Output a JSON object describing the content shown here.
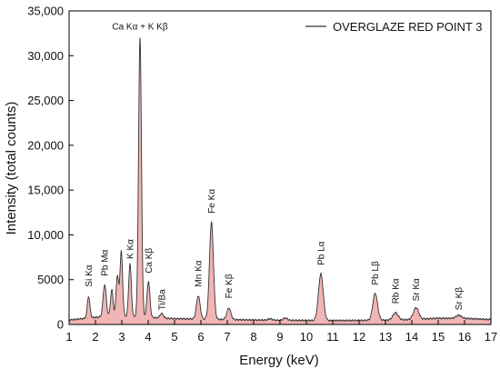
{
  "chart_data": {
    "type": "area",
    "xlabel": "Energy (keV)",
    "ylabel": "Intensity (total counts)",
    "xlim": [
      1,
      17
    ],
    "ylim": [
      0,
      35000
    ],
    "x_ticks": [
      "1",
      "2",
      "3",
      "4",
      "5",
      "6",
      "7",
      "8",
      "9",
      "10",
      "11",
      "12",
      "13",
      "14",
      "15",
      "16",
      "17"
    ],
    "y_ticks": [
      {
        "value": 0,
        "label": "0"
      },
      {
        "value": 5000,
        "label": "5000"
      },
      {
        "value": 10000,
        "label": "10,000"
      },
      {
        "value": 15000,
        "label": "15,000"
      },
      {
        "value": 20000,
        "label": "20,000"
      },
      {
        "value": 25000,
        "label": "25,000"
      },
      {
        "value": 30000,
        "label": "30,000"
      },
      {
        "value": 35000,
        "label": "35,000"
      }
    ],
    "legend": "top-right",
    "grid": false,
    "line_color": "#333333",
    "fill_color": "#f2b5b5",
    "series": [
      {
        "name": "OVERGLAZE RED POINT 3",
        "background": [
          [
            1.0,
            500
          ],
          [
            1.5,
            650
          ],
          [
            2.0,
            800
          ],
          [
            3.0,
            900
          ],
          [
            4.0,
            800
          ],
          [
            5.0,
            650
          ],
          [
            6.0,
            600
          ],
          [
            7.0,
            550
          ],
          [
            8.0,
            500
          ],
          [
            9.0,
            470
          ],
          [
            10.0,
            450
          ],
          [
            11.0,
            440
          ],
          [
            12.0,
            450
          ],
          [
            13.0,
            480
          ],
          [
            14.0,
            550
          ],
          [
            15.0,
            700
          ],
          [
            16.0,
            680
          ],
          [
            17.0,
            550
          ]
        ],
        "peaks": [
          {
            "energy": 1.74,
            "height": 2400,
            "width": 0.05
          },
          {
            "energy": 2.35,
            "height": 3600,
            "width": 0.06
          },
          {
            "energy": 2.62,
            "height": 3000,
            "width": 0.05
          },
          {
            "energy": 2.83,
            "height": 4500,
            "width": 0.05
          },
          {
            "energy": 2.98,
            "height": 7200,
            "width": 0.05
          },
          {
            "energy": 3.31,
            "height": 5900,
            "width": 0.05
          },
          {
            "energy": 3.69,
            "height": 31100,
            "width": 0.055
          },
          {
            "energy": 4.01,
            "height": 4000,
            "width": 0.055
          },
          {
            "energy": 4.51,
            "height": 500,
            "width": 0.06
          },
          {
            "energy": 5.9,
            "height": 2600,
            "width": 0.07
          },
          {
            "energy": 6.4,
            "height": 10800,
            "width": 0.075
          },
          {
            "energy": 7.06,
            "height": 1300,
            "width": 0.075
          },
          {
            "energy": 8.63,
            "height": 150,
            "width": 0.08
          },
          {
            "energy": 9.2,
            "height": 250,
            "width": 0.08
          },
          {
            "energy": 10.55,
            "height": 5200,
            "width": 0.09
          },
          {
            "energy": 12.61,
            "height": 3000,
            "width": 0.09
          },
          {
            "energy": 13.38,
            "height": 800,
            "width": 0.1
          },
          {
            "energy": 14.16,
            "height": 1300,
            "width": 0.1
          },
          {
            "energy": 15.78,
            "height": 350,
            "width": 0.1
          }
        ]
      }
    ],
    "annotations": [
      {
        "text": "Si Kα",
        "x": 1.74,
        "y": 4200,
        "vertical": true
      },
      {
        "text": "Pb Mα",
        "x": 2.35,
        "y": 5400,
        "vertical": true
      },
      {
        "text": "K Kα",
        "x": 3.31,
        "y": 7300,
        "vertical": true
      },
      {
        "text": "Ca Kα + K Kβ",
        "x": 3.69,
        "y": 32900,
        "vertical": false
      },
      {
        "text": "Ca Kβ",
        "x": 4.01,
        "y": 5700,
        "vertical": true
      },
      {
        "text": "Ti/Ba",
        "x": 4.51,
        "y": 1600,
        "vertical": true
      },
      {
        "text": "Mn Kα",
        "x": 5.9,
        "y": 4200,
        "vertical": true
      },
      {
        "text": "Fe Kα",
        "x": 6.4,
        "y": 12400,
        "vertical": true
      },
      {
        "text": "Fe Kβ",
        "x": 7.06,
        "y": 2900,
        "vertical": true
      },
      {
        "text": "Pb Lα",
        "x": 10.55,
        "y": 6600,
        "vertical": true
      },
      {
        "text": "Pb Lβ",
        "x": 12.61,
        "y": 4400,
        "vertical": true
      },
      {
        "text": "Rb Kα",
        "x": 13.38,
        "y": 2300,
        "vertical": true
      },
      {
        "text": "Sr Kα",
        "x": 14.16,
        "y": 2600,
        "vertical": true
      },
      {
        "text": "Sr Kβ",
        "x": 15.78,
        "y": 1600,
        "vertical": true
      }
    ]
  }
}
